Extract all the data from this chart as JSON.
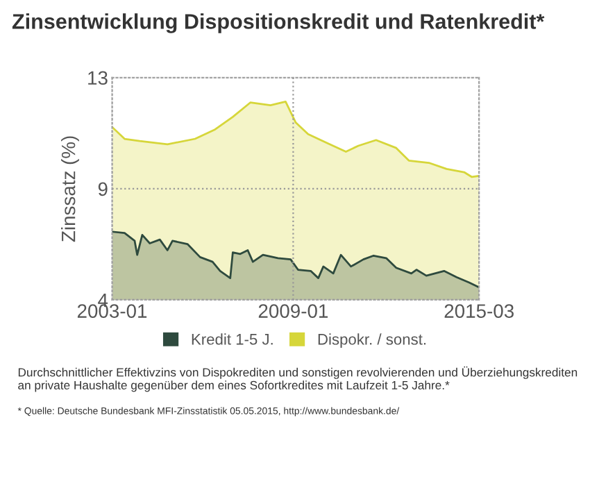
{
  "chart_data": {
    "type": "area",
    "title": "Zinsentwicklung Dispositionskredit und Ratenkredit*",
    "ylabel": "Zinssatz (%)",
    "xlim": [
      "2003-01",
      "2015-03"
    ],
    "xticks": [
      "2003-01",
      "2009-01",
      "2015-03"
    ],
    "ylim": [
      4,
      13
    ],
    "yticks": [
      4,
      {
        "value": 8.5,
        "label": "9"
      },
      13
    ],
    "grid": true,
    "legend": "bottom",
    "series": [
      {
        "name": "Kredit 1-5 J.",
        "color": "#2e4a3e",
        "x": [
          "2003-01",
          "2003-06",
          "2003-10",
          "2003-11",
          "2004-01",
          "2004-04",
          "2004-08",
          "2004-11",
          "2005-01",
          "2005-07",
          "2005-12",
          "2006-05",
          "2006-08",
          "2006-12",
          "2007-01",
          "2007-04",
          "2007-07",
          "2007-09",
          "2008-01",
          "2008-07",
          "2008-12",
          "2009-03",
          "2009-08",
          "2009-11",
          "2010-01",
          "2010-05",
          "2010-08",
          "2010-12",
          "2011-05",
          "2011-09",
          "2012-02",
          "2012-06",
          "2012-12",
          "2013-02",
          "2013-06",
          "2014-01",
          "2014-06",
          "2014-11",
          "2015-03"
        ],
        "values": [
          6.76,
          6.71,
          6.39,
          5.82,
          6.63,
          6.29,
          6.44,
          6.01,
          6.39,
          6.26,
          5.73,
          5.54,
          5.17,
          4.88,
          5.92,
          5.86,
          6.01,
          5.54,
          5.82,
          5.69,
          5.64,
          5.22,
          5.17,
          4.88,
          5.35,
          5.07,
          5.82,
          5.35,
          5.64,
          5.79,
          5.69,
          5.3,
          5.07,
          5.22,
          4.98,
          5.17,
          4.92,
          4.7,
          4.51
        ]
      },
      {
        "name": "Dispokr. / sonst.",
        "color": "#d6d63a",
        "x": [
          "2003-01",
          "2003-06",
          "2003-12",
          "2004-11",
          "2005-10",
          "2006-06",
          "2007-01",
          "2007-08",
          "2008-04",
          "2008-10",
          "2009-02",
          "2009-07",
          "2010-02",
          "2010-10",
          "2011-03",
          "2011-10",
          "2012-06",
          "2012-11",
          "2013-07",
          "2014-02",
          "2014-09",
          "2014-12",
          "2015-03"
        ],
        "values": [
          11.0,
          10.52,
          10.43,
          10.3,
          10.52,
          10.9,
          11.41,
          11.99,
          11.88,
          12.03,
          11.18,
          10.71,
          10.37,
          10.0,
          10.24,
          10.47,
          10.15,
          9.64,
          9.55,
          9.3,
          9.17,
          8.98,
          9.02
        ]
      }
    ],
    "annotations": [
      "Durchschnittlicher Effektivzins von Dispokrediten und sonstigen revolvierenden und Überziehungskrediten an private Haushalte gegenüber dem eines Sofortkredites mit Laufzeit 1-5 Jahre.*",
      "* Quelle: Deutsche Bundesbank MFI-Zinsstatistik 05.05.2015, http://www.bundesbank.de/"
    ]
  }
}
